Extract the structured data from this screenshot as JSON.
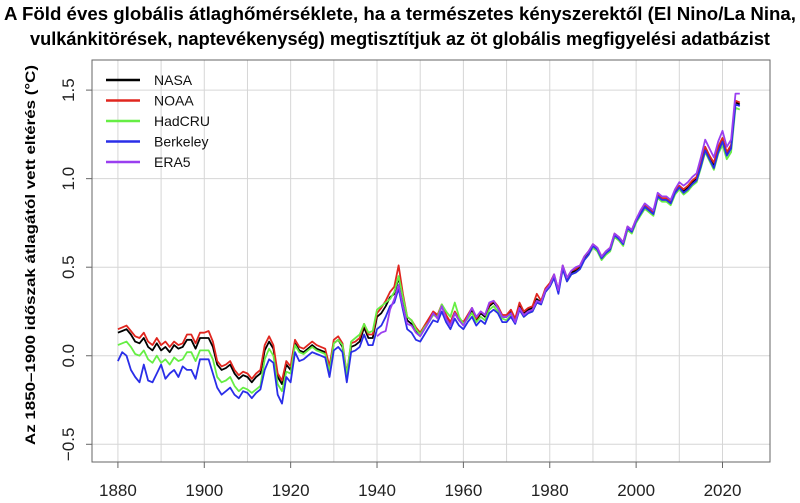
{
  "chart_data": {
    "type": "line",
    "title_lines": [
      "A Föld éves globális átlaghőmérséklete, ha a természetes kényszerektől (El Nino/La Nina,",
      "vulkánkitörések, naptevékenység) megtisztítjuk az öt globális megfigyelési adatbázist"
    ],
    "xlabel": "",
    "ylabel": "Az 1850–1900 időszak átlagától vett eltérés (°C)",
    "xlim": [
      1874,
      2031
    ],
    "ylim": [
      -0.6,
      1.67
    ],
    "xticks": [
      1880,
      1900,
      1920,
      1940,
      1960,
      1980,
      2000,
      2020
    ],
    "yticks": [
      -0.5,
      0.0,
      0.5,
      1.0,
      1.5
    ],
    "ytick_labels": [
      "−0.5",
      "0.0",
      "0.5",
      "1.0",
      "1.5"
    ],
    "grid": true,
    "legend_position": "top-left",
    "series": [
      {
        "name": "NASA",
        "color": "#000000",
        "start": 1880,
        "values": [
          0.13,
          0.14,
          0.15,
          0.12,
          0.08,
          0.07,
          0.1,
          0.05,
          0.03,
          0.07,
          0.03,
          0.05,
          0.02,
          0.06,
          0.04,
          0.05,
          0.09,
          0.09,
          0.04,
          0.1,
          0.1,
          0.1,
          0.05,
          -0.05,
          -0.08,
          -0.07,
          -0.05,
          -0.1,
          -0.13,
          -0.11,
          -0.12,
          -0.15,
          -0.12,
          -0.1,
          0.03,
          0.08,
          0.04,
          -0.12,
          -0.16,
          -0.05,
          -0.08,
          0.07,
          0.03,
          0.02,
          0.04,
          0.06,
          0.04,
          0.03,
          0.02,
          -0.08,
          0.07,
          0.09,
          0.05,
          -0.12,
          0.05,
          0.06,
          0.08,
          0.16,
          0.1,
          0.1,
          0.22,
          0.24,
          0.28,
          0.33,
          0.35,
          0.44,
          0.32,
          0.2,
          0.18,
          0.14,
          0.12,
          0.16,
          0.2,
          0.24,
          0.22,
          0.28,
          0.22,
          0.18,
          0.24,
          0.2,
          0.18,
          0.22,
          0.26,
          0.2,
          0.24,
          0.22,
          0.28,
          0.3,
          0.27,
          0.22,
          0.22,
          0.25,
          0.2,
          0.28,
          0.24,
          0.26,
          0.27,
          0.32,
          0.3,
          0.37,
          0.4,
          0.45,
          0.36,
          0.5,
          0.43,
          0.47,
          0.48,
          0.5,
          0.55,
          0.58,
          0.62,
          0.6,
          0.55,
          0.58,
          0.6,
          0.68,
          0.66,
          0.63,
          0.72,
          0.7,
          0.76,
          0.8,
          0.84,
          0.82,
          0.8,
          0.9,
          0.88,
          0.88,
          0.86,
          0.92,
          0.95,
          0.93,
          0.95,
          0.98,
          1.0,
          1.08,
          1.17,
          1.12,
          1.08,
          1.17,
          1.22,
          1.14,
          1.18,
          1.43,
          1.42
        ]
      },
      {
        "name": "NOAA",
        "color": "#e0261f",
        "start": 1880,
        "values": [
          0.15,
          0.16,
          0.17,
          0.14,
          0.11,
          0.1,
          0.13,
          0.08,
          0.06,
          0.1,
          0.06,
          0.08,
          0.05,
          0.08,
          0.06,
          0.07,
          0.12,
          0.12,
          0.07,
          0.13,
          0.13,
          0.14,
          0.08,
          -0.03,
          -0.06,
          -0.05,
          -0.03,
          -0.08,
          -0.11,
          -0.09,
          -0.1,
          -0.13,
          -0.1,
          -0.08,
          0.06,
          0.11,
          0.06,
          -0.1,
          -0.14,
          -0.03,
          -0.06,
          0.09,
          0.05,
          0.04,
          0.06,
          0.08,
          0.06,
          0.05,
          0.04,
          -0.06,
          0.09,
          0.11,
          0.07,
          -0.1,
          0.07,
          0.08,
          0.1,
          0.18,
          0.12,
          0.12,
          0.24,
          0.27,
          0.31,
          0.36,
          0.39,
          0.51,
          0.35,
          0.22,
          0.2,
          0.16,
          0.13,
          0.17,
          0.21,
          0.25,
          0.23,
          0.29,
          0.23,
          0.19,
          0.25,
          0.21,
          0.19,
          0.23,
          0.27,
          0.21,
          0.25,
          0.23,
          0.29,
          0.31,
          0.28,
          0.23,
          0.23,
          0.26,
          0.21,
          0.3,
          0.25,
          0.27,
          0.28,
          0.35,
          0.31,
          0.38,
          0.41,
          0.46,
          0.37,
          0.51,
          0.44,
          0.48,
          0.49,
          0.51,
          0.56,
          0.59,
          0.63,
          0.61,
          0.56,
          0.59,
          0.61,
          0.69,
          0.67,
          0.64,
          0.73,
          0.71,
          0.77,
          0.81,
          0.85,
          0.83,
          0.81,
          0.91,
          0.89,
          0.89,
          0.87,
          0.93,
          0.96,
          0.94,
          0.96,
          0.99,
          1.01,
          1.09,
          1.18,
          1.13,
          1.09,
          1.18,
          1.23,
          1.15,
          1.19,
          1.44,
          1.43
        ]
      },
      {
        "name": "HadCRU",
        "color": "#66ee44",
        "start": 1880,
        "values": [
          0.06,
          0.07,
          0.08,
          0.05,
          0.01,
          0.0,
          0.03,
          -0.02,
          -0.04,
          0.0,
          -0.04,
          -0.02,
          -0.05,
          -0.01,
          -0.03,
          -0.02,
          0.02,
          0.02,
          -0.03,
          0.03,
          0.03,
          0.03,
          -0.02,
          -0.12,
          -0.15,
          -0.14,
          -0.12,
          -0.17,
          -0.2,
          -0.18,
          -0.19,
          -0.21,
          -0.19,
          -0.17,
          -0.02,
          0.04,
          0.0,
          -0.16,
          -0.2,
          -0.09,
          -0.1,
          0.06,
          0.02,
          0.01,
          0.03,
          0.05,
          0.03,
          0.02,
          0.01,
          -0.09,
          0.07,
          0.09,
          0.06,
          -0.11,
          0.08,
          0.1,
          0.12,
          0.18,
          0.13,
          0.14,
          0.26,
          0.28,
          0.3,
          0.32,
          0.36,
          0.45,
          0.33,
          0.22,
          0.2,
          0.15,
          0.12,
          0.16,
          0.19,
          0.23,
          0.22,
          0.29,
          0.25,
          0.22,
          0.3,
          0.22,
          0.18,
          0.21,
          0.24,
          0.19,
          0.22,
          0.2,
          0.26,
          0.28,
          0.25,
          0.21,
          0.2,
          0.23,
          0.19,
          0.26,
          0.22,
          0.24,
          0.25,
          0.3,
          0.29,
          0.36,
          0.39,
          0.44,
          0.36,
          0.49,
          0.42,
          0.46,
          0.47,
          0.49,
          0.54,
          0.57,
          0.61,
          0.59,
          0.54,
          0.57,
          0.59,
          0.67,
          0.65,
          0.62,
          0.71,
          0.69,
          0.75,
          0.79,
          0.83,
          0.81,
          0.79,
          0.89,
          0.87,
          0.87,
          0.85,
          0.91,
          0.94,
          0.91,
          0.93,
          0.96,
          0.98,
          1.06,
          1.15,
          1.1,
          1.05,
          1.14,
          1.19,
          1.11,
          1.15,
          1.4,
          1.39
        ]
      },
      {
        "name": "Berkeley",
        "color": "#2a2ee8",
        "start": 1880,
        "values": [
          -0.03,
          0.02,
          0.0,
          -0.08,
          -0.12,
          -0.15,
          -0.05,
          -0.14,
          -0.15,
          -0.1,
          -0.05,
          -0.13,
          -0.1,
          -0.08,
          -0.12,
          -0.06,
          -0.08,
          -0.08,
          -0.13,
          -0.02,
          -0.02,
          -0.02,
          -0.1,
          -0.18,
          -0.22,
          -0.2,
          -0.18,
          -0.22,
          -0.24,
          -0.2,
          -0.21,
          -0.24,
          -0.21,
          -0.19,
          -0.08,
          -0.02,
          -0.04,
          -0.22,
          -0.27,
          -0.12,
          -0.15,
          0.02,
          -0.03,
          -0.02,
          0.0,
          0.02,
          0.01,
          0.0,
          -0.01,
          -0.12,
          0.03,
          0.05,
          0.02,
          -0.15,
          0.02,
          0.03,
          0.05,
          0.12,
          0.06,
          0.06,
          0.15,
          0.17,
          0.22,
          0.28,
          0.3,
          0.38,
          0.26,
          0.15,
          0.13,
          0.09,
          0.08,
          0.12,
          0.16,
          0.2,
          0.19,
          0.25,
          0.19,
          0.15,
          0.21,
          0.17,
          0.15,
          0.19,
          0.22,
          0.17,
          0.2,
          0.18,
          0.24,
          0.26,
          0.24,
          0.19,
          0.19,
          0.22,
          0.18,
          0.26,
          0.22,
          0.24,
          0.25,
          0.3,
          0.29,
          0.36,
          0.39,
          0.44,
          0.35,
          0.49,
          0.42,
          0.46,
          0.47,
          0.49,
          0.54,
          0.57,
          0.62,
          0.6,
          0.55,
          0.58,
          0.6,
          0.68,
          0.66,
          0.63,
          0.72,
          0.7,
          0.76,
          0.8,
          0.84,
          0.82,
          0.8,
          0.9,
          0.88,
          0.88,
          0.86,
          0.92,
          0.95,
          0.92,
          0.94,
          0.97,
          0.99,
          1.07,
          1.16,
          1.11,
          1.06,
          1.15,
          1.21,
          1.13,
          1.17,
          1.42,
          1.41
        ]
      },
      {
        "name": "ERA5",
        "color": "#9a3ff0",
        "start": 1940,
        "values": [
          0.11,
          0.13,
          0.14,
          0.26,
          0.32,
          0.4,
          0.28,
          0.18,
          0.17,
          0.13,
          0.11,
          0.15,
          0.19,
          0.24,
          0.21,
          0.28,
          0.21,
          0.17,
          0.24,
          0.2,
          0.17,
          0.22,
          0.27,
          0.22,
          0.25,
          0.23,
          0.3,
          0.31,
          0.27,
          0.22,
          0.22,
          0.24,
          0.19,
          0.27,
          0.23,
          0.25,
          0.26,
          0.31,
          0.3,
          0.37,
          0.4,
          0.46,
          0.37,
          0.51,
          0.44,
          0.48,
          0.5,
          0.51,
          0.56,
          0.59,
          0.63,
          0.61,
          0.56,
          0.59,
          0.61,
          0.69,
          0.67,
          0.64,
          0.73,
          0.71,
          0.77,
          0.82,
          0.86,
          0.84,
          0.82,
          0.92,
          0.9,
          0.9,
          0.88,
          0.94,
          0.98,
          0.96,
          0.98,
          1.01,
          1.03,
          1.12,
          1.22,
          1.17,
          1.12,
          1.21,
          1.27,
          1.18,
          1.22,
          1.48,
          1.48
        ]
      }
    ]
  }
}
